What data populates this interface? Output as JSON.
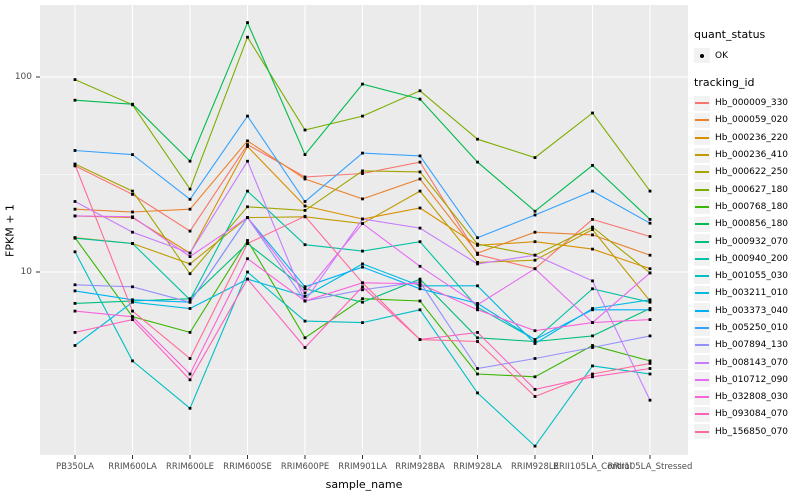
{
  "figure": {
    "x_axis": {
      "title": "sample_name"
    },
    "y_axis": {
      "title": "FPKM + 1",
      "tick_labels": [
        "100",
        "10"
      ]
    },
    "legend": {
      "quant_status_title": "quant_status",
      "quant_status_items": [
        {
          "label": "OK"
        }
      ],
      "tracking_id_title": "tracking_id"
    }
  },
  "chart_data": {
    "type": "line",
    "title": "",
    "xlabel": "sample_name",
    "ylabel": "FPKM + 1",
    "y_scale": "log10",
    "ylim": [
      1.15,
      230
    ],
    "y_major_ticks": [
      10,
      100
    ],
    "y_minor_gridlines": [
      3.162,
      31.62
    ],
    "grid": "on",
    "legend_position": "right",
    "panel_bg": "#EBEBEB",
    "grid_color": "#FFFFFF",
    "point_color": "#000000",
    "point_legend_label": "OK",
    "categories": [
      "PB350LA",
      "RRIM600LA",
      "RRIM600LE",
      "RRIM600SE",
      "RRIM600PE",
      "RRIM901LA",
      "RRIM928BA",
      "RRIM928LA",
      "RRIM928LE",
      "RRII105LA_Control",
      "RRII105LA_Stressed"
    ],
    "series": [
      {
        "name": "Hb_000009_330",
        "color": "#F8766D",
        "values": [
          35,
          25,
          16.2,
          45,
          30.7,
          32,
          36.6,
          12.3,
          10.4,
          18.6,
          15.2
        ]
      },
      {
        "name": "Hb_000059_020",
        "color": "#EA8331",
        "values": [
          21,
          20.3,
          21,
          47,
          30,
          23.7,
          30,
          12.5,
          16,
          15.5,
          12.2
        ]
      },
      {
        "name": "Hb_000236_220",
        "color": "#D89000",
        "values": [
          19.4,
          19,
          12.5,
          44,
          21.8,
          18.7,
          21.3,
          13.7,
          14.3,
          13.1,
          10.4
        ]
      },
      {
        "name": "Hb_000236_410",
        "color": "#C09B00",
        "values": [
          15,
          14,
          11,
          19,
          19.2,
          17.7,
          26,
          11.2,
          11.5,
          16.5,
          7.1
        ]
      },
      {
        "name": "Hb_000622_250",
        "color": "#A3A500",
        "values": [
          35.8,
          26,
          9.8,
          21.6,
          20.7,
          33,
          32.6,
          13.9,
          12.2,
          17,
          9.9
        ]
      },
      {
        "name": "Hb_000627_180",
        "color": "#7CAE00",
        "values": [
          97,
          72,
          26.6,
          160,
          53.5,
          63,
          85,
          48,
          38.6,
          65.4,
          26
        ]
      },
      {
        "name": "Hb_000768_180",
        "color": "#39B600",
        "values": [
          15,
          5.9,
          4.9,
          14.5,
          4.6,
          7.3,
          7.1,
          3.0,
          2.9,
          4.2,
          3.5
        ]
      },
      {
        "name": "Hb_000856_180",
        "color": "#00BB4E",
        "values": [
          76,
          72.5,
          37,
          190,
          40,
          92,
          77,
          36.6,
          20.5,
          35.2,
          18.6
        ]
      },
      {
        "name": "Hb_000932_070",
        "color": "#00BF7D",
        "values": [
          6.9,
          7.1,
          7.3,
          14,
          8.2,
          7.0,
          9.2,
          4.6,
          4.4,
          4.7,
          6.5
        ]
      },
      {
        "name": "Hb_000940_200",
        "color": "#00C1A3",
        "values": [
          14.9,
          14,
          7.2,
          26,
          13.8,
          12.8,
          14.3,
          6.6,
          4.5,
          8.2,
          7.0
        ]
      },
      {
        "name": "Hb_001055_030",
        "color": "#00BFC4",
        "values": [
          12.7,
          3.5,
          2.0,
          10,
          5.6,
          5.5,
          6.4,
          2.4,
          1.28,
          3.3,
          3.0
        ]
      },
      {
        "name": "Hb_003211_010",
        "color": "#00BAE0",
        "values": [
          4.2,
          7.0,
          6.5,
          9.2,
          7.5,
          11,
          8.5,
          8.5,
          4.3,
          6.5,
          7.2
        ]
      },
      {
        "name": "Hb_003373_040",
        "color": "#00B0F6",
        "values": [
          8.0,
          7.2,
          7.0,
          19,
          8.4,
          10.6,
          8.2,
          6.9,
          4.5,
          6.4,
          6.4
        ]
      },
      {
        "name": "Hb_005250_010",
        "color": "#35A2FF",
        "values": [
          42,
          40,
          23.6,
          63,
          23,
          40.7,
          39.4,
          15,
          19.6,
          26,
          17.8
        ]
      },
      {
        "name": "Hb_007894_130",
        "color": "#9590FF",
        "values": [
          8.6,
          8.4,
          7.0,
          19,
          7.1,
          8.1,
          8.9,
          3.2,
          3.6,
          4.1,
          4.7
        ]
      },
      {
        "name": "Hb_008143_070",
        "color": "#C77CFF",
        "values": [
          23,
          16,
          12.5,
          37,
          7.1,
          18.7,
          16.8,
          11,
          12.2,
          9.0,
          2.2
        ]
      },
      {
        "name": "Hb_010712_090",
        "color": "#E76BF3",
        "values": [
          19.4,
          19.2,
          12.0,
          19,
          7.8,
          17.7,
          10.7,
          6.8,
          10.4,
          5.5,
          9.9
        ]
      },
      {
        "name": "Hb_032808_030",
        "color": "#FA62DB",
        "values": [
          6.3,
          5.9,
          3.0,
          11.7,
          7.1,
          8.8,
          8.7,
          6.4,
          5.0,
          5.5,
          5.7
        ]
      },
      {
        "name": "Hb_093084_070",
        "color": "#FF62BC",
        "values": [
          4.9,
          5.7,
          2.8,
          9.2,
          4.1,
          8.4,
          4.5,
          4.9,
          2.5,
          2.9,
          3.2
        ]
      },
      {
        "name": "Hb_156850_070",
        "color": "#FF6A98",
        "values": [
          35.5,
          6.3,
          3.6,
          14,
          19.3,
          8.8,
          4.5,
          4.4,
          2.3,
          3.0,
          3.4
        ]
      }
    ]
  }
}
